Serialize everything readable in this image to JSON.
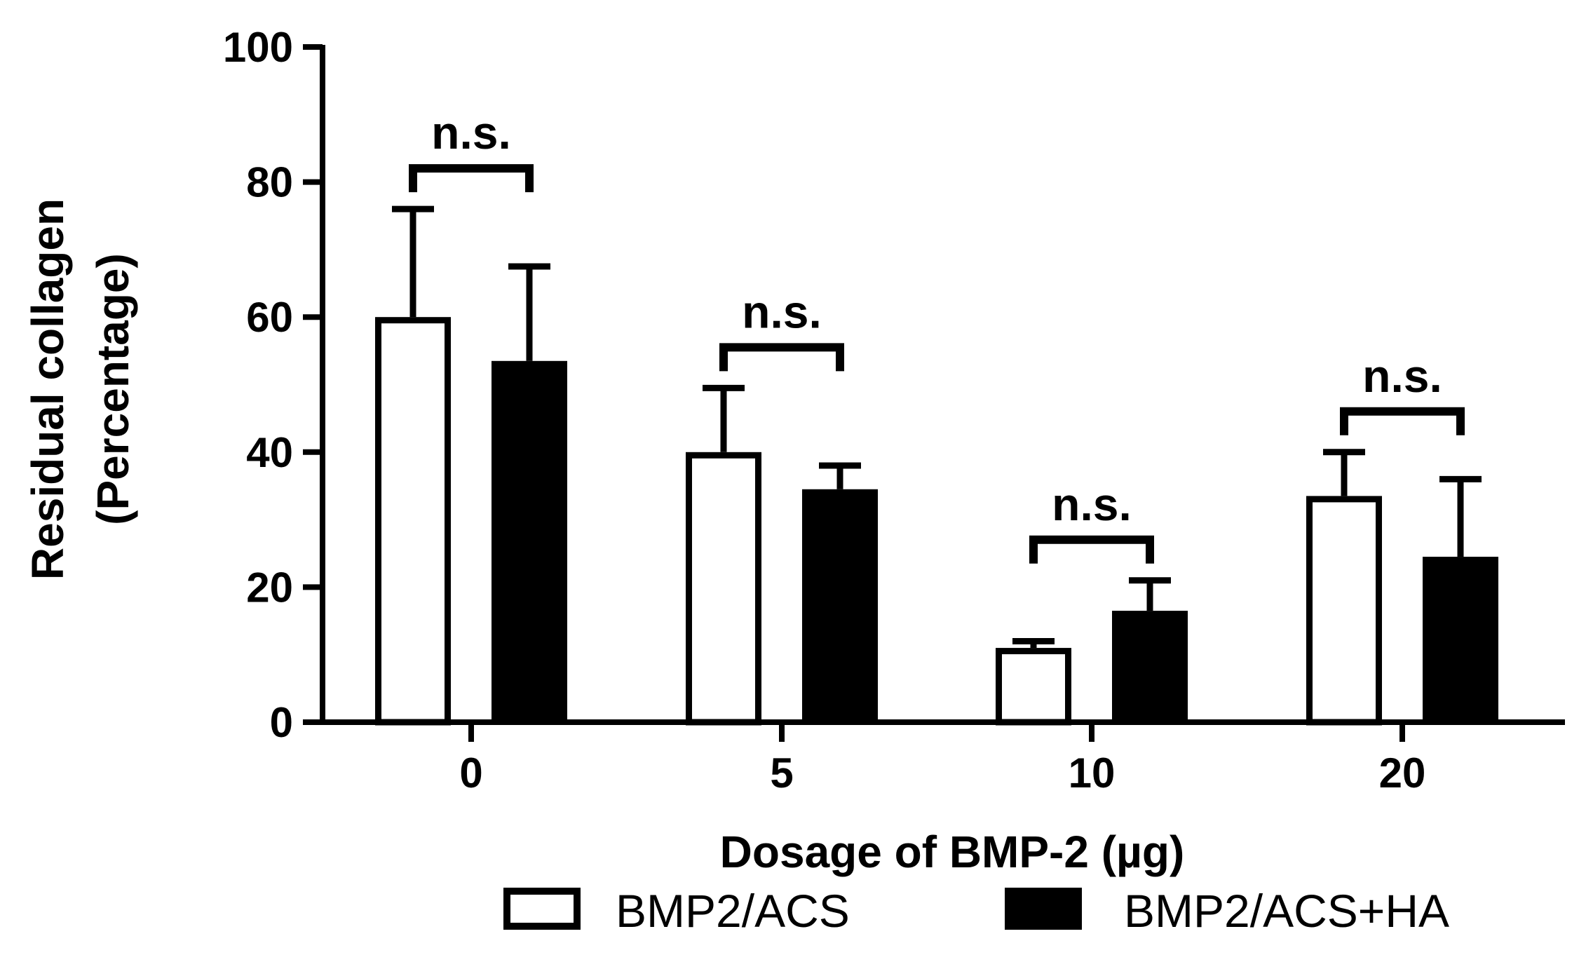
{
  "chart_data": {
    "type": "bar",
    "categories": [
      "0",
      "5",
      "10",
      "20"
    ],
    "series": [
      {
        "name": "BMP2/ACS",
        "values": [
          60,
          40,
          11,
          33.5
        ],
        "errors": [
          16,
          9.5,
          1,
          6.5
        ],
        "fill": "#ffffff",
        "stroke": "#000000"
      },
      {
        "name": "BMP2/ACS+HA",
        "values": [
          53.5,
          34.5,
          16.5,
          24.5
        ],
        "errors": [
          14,
          3.5,
          4.5,
          11.5
        ],
        "fill": "#000000",
        "stroke": "#000000"
      }
    ],
    "significance": [
      "n.s.",
      "n.s.",
      "n.s.",
      "n.s."
    ],
    "ylim": [
      0,
      100
    ],
    "yticks": [
      "0",
      "20",
      "40",
      "60",
      "80",
      "100"
    ],
    "xlabel": "Dosage of BMP-2 (µg)",
    "ylabel_lines": [
      "Residual collagen",
      "(Percentage)"
    ],
    "legend_position": "bottom"
  }
}
